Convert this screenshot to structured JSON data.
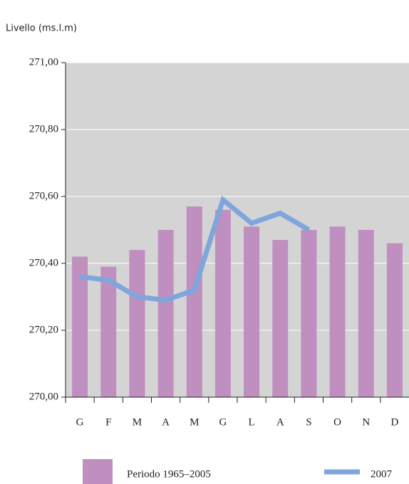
{
  "chart_data": {
    "type": "bar",
    "y_label": "Livello (ms.l.m)",
    "categories": [
      "G",
      "F",
      "M",
      "A",
      "M",
      "G",
      "L",
      "A",
      "S",
      "O",
      "N",
      "D"
    ],
    "series": [
      {
        "name": "Periodo 1965–2005",
        "type": "bar",
        "color": "#bf8fc0",
        "values": [
          270.42,
          270.39,
          270.44,
          270.5,
          270.57,
          270.56,
          270.51,
          270.47,
          270.5,
          270.51,
          270.5,
          270.46
        ]
      },
      {
        "name": "2007",
        "type": "line",
        "color": "#7fa6dc",
        "values": [
          270.36,
          270.35,
          270.3,
          270.29,
          270.32,
          270.59,
          270.52,
          270.55,
          270.5,
          null,
          null,
          null
        ]
      }
    ],
    "ylim": [
      270.0,
      271.0
    ],
    "yticks": [
      {
        "value": 270.0,
        "label": "270,00"
      },
      {
        "value": 270.2,
        "label": "270,20"
      },
      {
        "value": 270.4,
        "label": "270,40"
      },
      {
        "value": 270.6,
        "label": "270,60"
      },
      {
        "value": 270.8,
        "label": "270,80"
      },
      {
        "value": 271.0,
        "label": "271,00"
      }
    ],
    "grid": true
  }
}
